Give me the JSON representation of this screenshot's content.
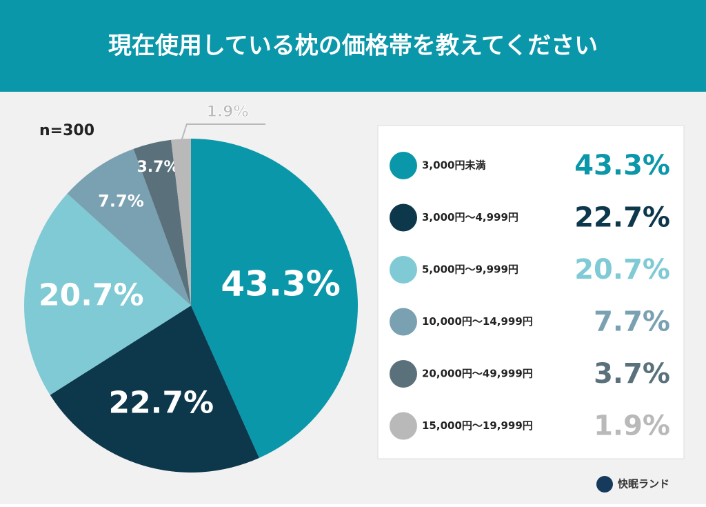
{
  "chart_data": {
    "type": "pie",
    "title": "現在使用している枕の価格帯を教えてください",
    "note": "n=300",
    "categories": [
      "3,000円未満",
      "3,000円〜4,999円",
      "5,000円〜9,999円",
      "10,000円〜14,999円",
      "20,000円〜49,999円",
      "15,000円〜19,999円"
    ],
    "values": [
      43.3,
      22.7,
      20.7,
      7.7,
      3.7,
      1.9
    ],
    "value_labels": [
      "43.3%",
      "22.7%",
      "20.7%",
      "7.7%",
      "3.7%",
      "1.9%"
    ],
    "colors": [
      "#0a97aa",
      "#0d374b",
      "#7fcad4",
      "#7aa1b1",
      "#5a717c",
      "#b9b9b9"
    ]
  },
  "brand": "快眠ランド"
}
